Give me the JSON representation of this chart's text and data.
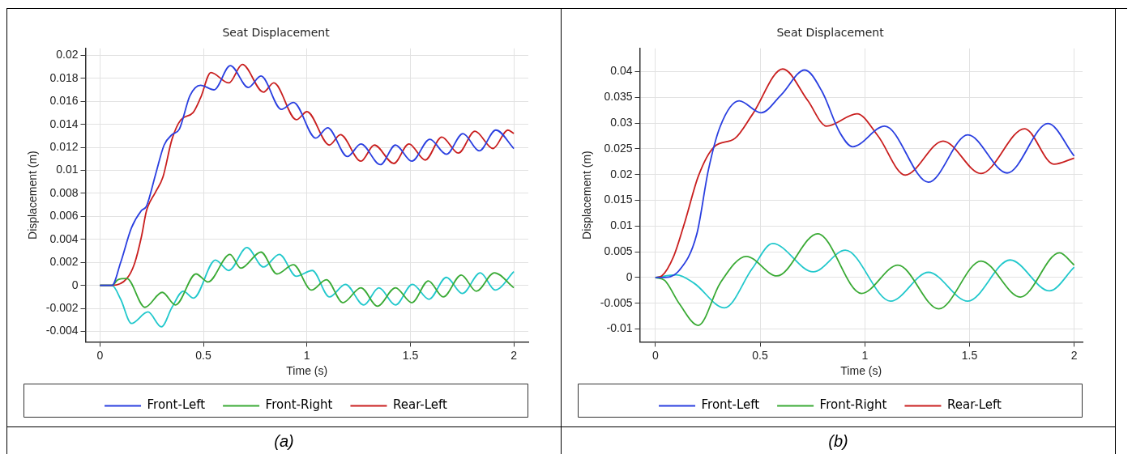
{
  "chart_data": [
    {
      "type": "line",
      "title": "Seat Displacement",
      "xlabel": "Time (s)",
      "ylabel": "Displacement (m)",
      "xlim": [
        -0.07,
        2.07
      ],
      "xticks": [
        0,
        0.5,
        1,
        1.5,
        2
      ],
      "ylim": [
        -0.0049,
        0.0206
      ],
      "yticks": [
        -0.004,
        -0.002,
        0,
        0.002,
        0.004,
        0.006,
        0.008,
        0.01,
        0.012,
        0.014,
        0.016,
        0.018,
        0.02
      ],
      "grid": true,
      "legend": "bottom",
      "marker": "none",
      "line_style": "solid",
      "annotations": [
        "(a)"
      ],
      "series": [
        {
          "name": "Front-Left",
          "color": "#2a3fe0",
          "x": [
            0,
            0.058,
            0.1,
            0.152,
            0.2,
            0.225,
            0.268,
            0.31,
            0.348,
            0.384,
            0.435,
            0.486,
            0.551,
            0.63,
            0.717,
            0.778,
            0.877,
            0.935,
            1.043,
            1.1,
            1.196,
            1.261,
            1.355,
            1.428,
            1.507,
            1.594,
            1.674,
            1.754,
            1.833,
            1.913,
            2.0
          ],
          "values": [
            0,
            0,
            0.002,
            0.005,
            0.0065,
            0.0069,
            0.0096,
            0.0122,
            0.0131,
            0.0136,
            0.0165,
            0.0174,
            0.017,
            0.0191,
            0.0172,
            0.0182,
            0.0153,
            0.0159,
            0.0128,
            0.0137,
            0.0112,
            0.0123,
            0.0105,
            0.0122,
            0.0108,
            0.0127,
            0.0114,
            0.0132,
            0.0117,
            0.0135,
            0.0119
          ]
        },
        {
          "name": "Front-Right",
          "color": "#3aaa35",
          "x": [
            0,
            0.058,
            0.087,
            0.13,
            0.217,
            0.301,
            0.365,
            0.464,
            0.522,
            0.628,
            0.681,
            0.778,
            0.855,
            0.935,
            1.022,
            1.094,
            1.174,
            1.261,
            1.341,
            1.428,
            1.507,
            1.587,
            1.659,
            1.746,
            1.819,
            1.906,
            2.0
          ],
          "values": [
            0,
            0,
            0.0005,
            0.0006,
            -0.0019,
            -0.0006,
            -0.0017,
            0.001,
            0.0003,
            0.0027,
            0.0015,
            0.0029,
            0.001,
            0.0018,
            -0.0004,
            0.0005,
            -0.0015,
            -0.0002,
            -0.0018,
            -0.0002,
            -0.0015,
            0.0004,
            -0.001,
            0.0009,
            -0.0005,
            0.0011,
            -0.0002
          ]
        },
        {
          "name": "Rear-Left",
          "color": "#c91f1f",
          "x": [
            0,
            0.058,
            0.13,
            0.167,
            0.2,
            0.225,
            0.268,
            0.304,
            0.348,
            0.391,
            0.449,
            0.486,
            0.536,
            0.623,
            0.688,
            0.79,
            0.84,
            0.949,
            1.0,
            1.109,
            1.162,
            1.261,
            1.326,
            1.42,
            1.493,
            1.572,
            1.652,
            1.732,
            1.812,
            1.899,
            1.971,
            2.0
          ],
          "values": [
            0,
            0,
            0.0006,
            0.0019,
            0.0042,
            0.0065,
            0.0081,
            0.0094,
            0.0127,
            0.0144,
            0.015,
            0.0163,
            0.0185,
            0.0176,
            0.0192,
            0.0168,
            0.0176,
            0.0144,
            0.0151,
            0.0122,
            0.0131,
            0.0108,
            0.0122,
            0.0106,
            0.0123,
            0.0109,
            0.0129,
            0.0115,
            0.0134,
            0.0119,
            0.0135,
            0.0132
          ]
        },
        {
          "color": "#22c8cc",
          "x": [
            0,
            0.058,
            0.1,
            0.152,
            0.232,
            0.297,
            0.348,
            0.403,
            0.452,
            0.558,
            0.623,
            0.71,
            0.79,
            0.867,
            0.949,
            1.026,
            1.109,
            1.186,
            1.275,
            1.348,
            1.428,
            1.51,
            1.59,
            1.674,
            1.751,
            1.838,
            1.91,
            2.0
          ],
          "values": [
            0,
            0,
            -0.0012,
            -0.0033,
            -0.0023,
            -0.0036,
            -0.0019,
            -0.0005,
            -0.0011,
            0.0022,
            0.0013,
            0.0033,
            0.0016,
            0.0027,
            0.0008,
            0.0013,
            -0.001,
            0.0001,
            -0.0017,
            -0.0002,
            -0.0017,
            0.0001,
            -0.0012,
            0.0007,
            -0.0007,
            0.0011,
            -0.0004,
            0.0012
          ]
        }
      ]
    },
    {
      "type": "line",
      "title": "Seat Displacement",
      "xlabel": "Time (s)",
      "ylabel": "Displacement (m)",
      "xlim": [
        -0.075,
        2.04
      ],
      "xticks": [
        0,
        0.5,
        1,
        1.5,
        2
      ],
      "ylim": [
        -0.0125,
        0.0445
      ],
      "yticks": [
        -0.01,
        -0.005,
        0,
        0.005,
        0.01,
        0.015,
        0.02,
        0.025,
        0.03,
        0.035,
        0.04
      ],
      "grid": true,
      "legend": "bottom",
      "marker": "none",
      "line_style": "solid",
      "annotations": [
        "(b)"
      ],
      "series": [
        {
          "name": "Front-Left",
          "color": "#2a3fe0",
          "x": [
            0,
            0.03,
            0.114,
            0.198,
            0.253,
            0.309,
            0.4,
            0.504,
            0.601,
            0.713,
            0.796,
            0.88,
            0.942,
            1.095,
            1.304,
            1.492,
            1.68,
            1.875,
            2.0
          ],
          "values": [
            0,
            0,
            0.0014,
            0.0085,
            0.0209,
            0.0293,
            0.0343,
            0.032,
            0.0355,
            0.0403,
            0.0361,
            0.0282,
            0.0254,
            0.0294,
            0.0185,
            0.0277,
            0.0203,
            0.0299,
            0.0236
          ]
        },
        {
          "name": "Front-Right",
          "color": "#3aaa35",
          "x": [
            0,
            0.045,
            0.114,
            0.205,
            0.309,
            0.434,
            0.58,
            0.775,
            0.984,
            1.158,
            1.353,
            1.555,
            1.743,
            1.93,
            2.0
          ],
          "values": [
            0,
            -0.0006,
            -0.0051,
            -0.0093,
            -0.0011,
            0.0041,
            0.0003,
            0.0085,
            -0.0031,
            0.0024,
            -0.0061,
            0.0032,
            -0.0038,
            0.0048,
            0.0024
          ]
        },
        {
          "name": "Rear-Left",
          "color": "#c91f1f",
          "x": [
            0,
            0.03,
            0.086,
            0.142,
            0.205,
            0.281,
            0.379,
            0.462,
            0.608,
            0.727,
            0.817,
            0.963,
            1.061,
            1.193,
            1.374,
            1.555,
            1.763,
            1.903,
            2.0
          ],
          "values": [
            0,
            0.0003,
            0.004,
            0.011,
            0.0197,
            0.0254,
            0.027,
            0.0316,
            0.0405,
            0.0344,
            0.0294,
            0.0318,
            0.0276,
            0.0199,
            0.0265,
            0.0202,
            0.0289,
            0.022,
            0.0232
          ]
        },
        {
          "color": "#22c8cc",
          "x": [
            0,
            0.1,
            0.184,
            0.33,
            0.462,
            0.56,
            0.754,
            0.907,
            1.123,
            1.304,
            1.492,
            1.694,
            1.882,
            2.0
          ],
          "values": [
            0,
            0.0005,
            -0.0011,
            -0.0059,
            0.0017,
            0.0066,
            0.0011,
            0.0053,
            -0.0046,
            0.001,
            -0.0046,
            0.0034,
            -0.0026,
            0.002
          ]
        }
      ]
    }
  ]
}
